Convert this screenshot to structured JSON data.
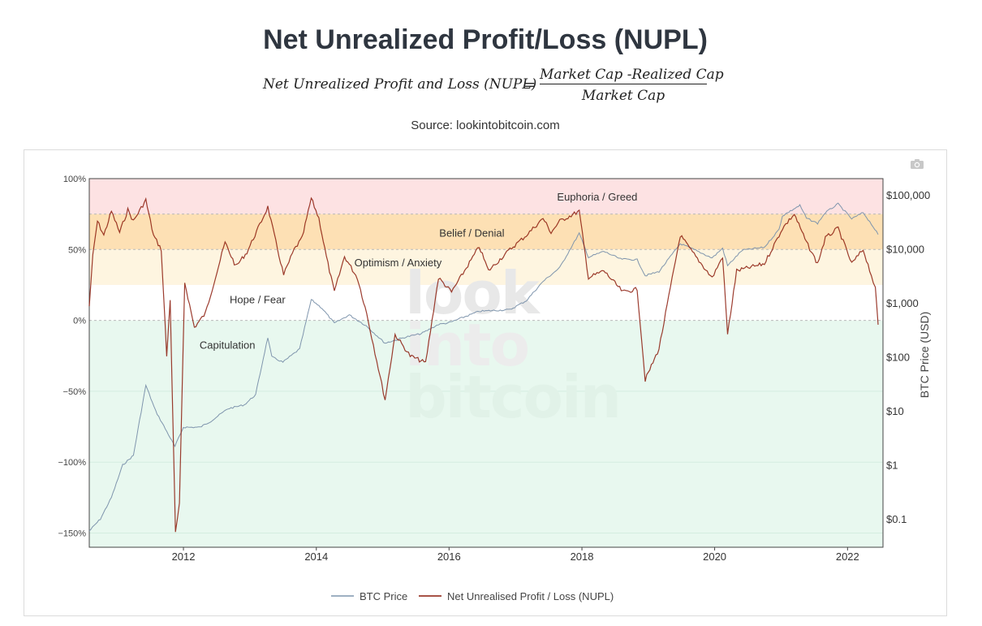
{
  "page": {
    "title": "Net Unrealized Profit/Loss (NUPL)",
    "formula": {
      "lhs": "Net Unrealized Profit and Loss (NUPL)",
      "equals": "=",
      "numerator": "Market Cap -Realized Cap",
      "denominator": "Market Cap"
    },
    "source": "Source: lookintobitcoin.com",
    "watermark": [
      "look",
      "into",
      "bitcoin"
    ]
  },
  "colors": {
    "nupl_line": "#8b1a0a",
    "btc_line": "#7f95ad",
    "zone_euphoria": "#fde2e3",
    "zone_belief": "#fde0b4",
    "zone_optimism": "#fef5e0",
    "zone_hope": "#ffffff",
    "zone_capitulation": "#e8f8ef"
  },
  "chart_data": {
    "type": "line",
    "x_type": "date",
    "x_ticks": [
      {
        "date": "2012-01-01",
        "label": "2012"
      },
      {
        "date": "2014-01-01",
        "label": "2014"
      },
      {
        "date": "2016-01-01",
        "label": "2016"
      },
      {
        "date": "2018-01-01",
        "label": "2018"
      },
      {
        "date": "2020-01-01",
        "label": "2020"
      },
      {
        "date": "2022-01-01",
        "label": "2022"
      }
    ],
    "xlim": [
      "2010-08-01",
      "2022-07-15"
    ],
    "y_left": {
      "ylim": [
        -160,
        100
      ],
      "ticks": [
        {
          "value": 100,
          "label": "100%"
        },
        {
          "value": 50,
          "label": "50%"
        },
        {
          "value": 0,
          "label": "0%"
        },
        {
          "value": -50,
          "label": "−50%"
        },
        {
          "value": -100,
          "label": "−100%"
        },
        {
          "value": -150,
          "label": "−150%"
        }
      ]
    },
    "y_right": {
      "label": "BTC Price (USD)",
      "scale": "log",
      "ylim": [
        0.03,
        200000
      ],
      "ticks": [
        {
          "value": 100000,
          "label": "$100,000"
        },
        {
          "value": 10000,
          "label": "$10,000"
        },
        {
          "value": 1000,
          "label": "$1,000"
        },
        {
          "value": 100,
          "label": "$100"
        },
        {
          "value": 10,
          "label": "$10"
        },
        {
          "value": 1,
          "label": "$1"
        },
        {
          "value": 0.1,
          "label": "$0.1"
        }
      ]
    },
    "zones": [
      {
        "label": "Euphoria / Greed",
        "from": 75,
        "to": 100,
        "color": "#fde2e3"
      },
      {
        "label": "Belief / Denial",
        "from": 50,
        "to": 75,
        "color": "#fde0b4"
      },
      {
        "label": "Optimism / Anxiety",
        "from": 25,
        "to": 50,
        "color": "#fef5e0"
      },
      {
        "label": "Hope / Fear",
        "from": 0,
        "to": 25,
        "color": "#ffffff"
      },
      {
        "label": "Capitulation",
        "from": -160,
        "to": 0,
        "color": "#e8f8ef"
      }
    ],
    "series": [
      {
        "name": "BTC Price",
        "axis": "right",
        "points": [
          [
            "2010-08-01",
            0.06
          ],
          [
            "2010-10-01",
            0.1
          ],
          [
            "2010-12-01",
            0.25
          ],
          [
            "2011-02-01",
            1.0
          ],
          [
            "2011-04-01",
            1.5
          ],
          [
            "2011-06-08",
            30
          ],
          [
            "2011-08-01",
            10
          ],
          [
            "2011-11-15",
            2.2
          ],
          [
            "2012-01-01",
            5
          ],
          [
            "2012-04-01",
            5
          ],
          [
            "2012-06-01",
            6.5
          ],
          [
            "2012-09-01",
            11
          ],
          [
            "2012-12-01",
            13
          ],
          [
            "2013-02-01",
            20
          ],
          [
            "2013-04-09",
            230
          ],
          [
            "2013-05-01",
            100
          ],
          [
            "2013-07-01",
            80
          ],
          [
            "2013-10-01",
            140
          ],
          [
            "2013-12-04",
            1150
          ],
          [
            "2014-02-01",
            800
          ],
          [
            "2014-04-10",
            420
          ],
          [
            "2014-07-01",
            600
          ],
          [
            "2014-10-01",
            380
          ],
          [
            "2015-01-14",
            180
          ],
          [
            "2015-05-01",
            230
          ],
          [
            "2015-08-01",
            270
          ],
          [
            "2015-11-04",
            400
          ],
          [
            "2016-01-01",
            430
          ],
          [
            "2016-06-15",
            700
          ],
          [
            "2016-12-01",
            750
          ],
          [
            "2017-03-01",
            1100
          ],
          [
            "2017-06-01",
            2500
          ],
          [
            "2017-09-01",
            4500
          ],
          [
            "2017-12-17",
            19500
          ],
          [
            "2018-02-06",
            7000
          ],
          [
            "2018-05-01",
            9000
          ],
          [
            "2018-08-01",
            6500
          ],
          [
            "2018-11-01",
            6300
          ],
          [
            "2018-12-15",
            3200
          ],
          [
            "2019-03-01",
            3800
          ],
          [
            "2019-06-26",
            12500
          ],
          [
            "2019-09-01",
            10000
          ],
          [
            "2019-12-18",
            6800
          ],
          [
            "2020-02-14",
            10300
          ],
          [
            "2020-03-12",
            4900
          ],
          [
            "2020-06-01",
            9500
          ],
          [
            "2020-10-01",
            10700
          ],
          [
            "2020-12-20",
            23000
          ],
          [
            "2021-01-08",
            41000
          ],
          [
            "2021-04-14",
            64000
          ],
          [
            "2021-05-20",
            37000
          ],
          [
            "2021-07-20",
            29700
          ],
          [
            "2021-09-01",
            47000
          ],
          [
            "2021-11-10",
            68000
          ],
          [
            "2022-01-24",
            36000
          ],
          [
            "2022-03-28",
            47000
          ],
          [
            "2022-05-12",
            29000
          ],
          [
            "2022-06-18",
            18500
          ]
        ]
      },
      {
        "name": "Net Unrealised Profit / Loss (NUPL)",
        "axis": "left",
        "points": [
          [
            "2010-08-01",
            10
          ],
          [
            "2010-08-20",
            45
          ],
          [
            "2010-09-15",
            70
          ],
          [
            "2010-10-20",
            60
          ],
          [
            "2010-12-01",
            77
          ],
          [
            "2011-01-15",
            62
          ],
          [
            "2011-03-01",
            78
          ],
          [
            "2011-04-01",
            70
          ],
          [
            "2011-06-08",
            85
          ],
          [
            "2011-07-20",
            60
          ],
          [
            "2011-09-01",
            50
          ],
          [
            "2011-10-01",
            -25
          ],
          [
            "2011-10-20",
            15
          ],
          [
            "2011-11-18",
            -150
          ],
          [
            "2011-12-10",
            -130
          ],
          [
            "2012-01-08",
            27
          ],
          [
            "2012-03-01",
            -5
          ],
          [
            "2012-05-01",
            5
          ],
          [
            "2012-08-17",
            55
          ],
          [
            "2012-10-15",
            38
          ],
          [
            "2012-12-15",
            48
          ],
          [
            "2013-02-15",
            65
          ],
          [
            "2013-04-09",
            80
          ],
          [
            "2013-05-15",
            60
          ],
          [
            "2013-07-05",
            32
          ],
          [
            "2013-09-01",
            50
          ],
          [
            "2013-10-15",
            58
          ],
          [
            "2013-12-04",
            86
          ],
          [
            "2014-01-15",
            72
          ],
          [
            "2014-02-25",
            45
          ],
          [
            "2014-04-10",
            20
          ],
          [
            "2014-06-05",
            45
          ],
          [
            "2014-08-15",
            30
          ],
          [
            "2014-10-05",
            5
          ],
          [
            "2015-01-14",
            -56
          ],
          [
            "2015-03-10",
            -10
          ],
          [
            "2015-06-01",
            -25
          ],
          [
            "2015-08-25",
            -30
          ],
          [
            "2015-11-04",
            30
          ],
          [
            "2016-01-15",
            20
          ],
          [
            "2016-06-15",
            52
          ],
          [
            "2016-08-05",
            35
          ],
          [
            "2016-12-01",
            50
          ],
          [
            "2017-03-01",
            60
          ],
          [
            "2017-06-01",
            72
          ],
          [
            "2017-07-15",
            62
          ],
          [
            "2017-09-01",
            70
          ],
          [
            "2017-12-17",
            77
          ],
          [
            "2018-02-06",
            30
          ],
          [
            "2018-05-01",
            35
          ],
          [
            "2018-08-14",
            20
          ],
          [
            "2018-11-01",
            22
          ],
          [
            "2018-12-15",
            -42
          ],
          [
            "2019-03-01",
            -20
          ],
          [
            "2019-06-26",
            60
          ],
          [
            "2019-09-01",
            48
          ],
          [
            "2019-12-18",
            30
          ],
          [
            "2020-02-14",
            45
          ],
          [
            "2020-03-12",
            -10
          ],
          [
            "2020-05-01",
            35
          ],
          [
            "2020-10-01",
            40
          ],
          [
            "2020-12-20",
            60
          ],
          [
            "2021-01-08",
            65
          ],
          [
            "2021-03-14",
            75
          ],
          [
            "2021-05-20",
            55
          ],
          [
            "2021-07-20",
            40
          ],
          [
            "2021-09-01",
            58
          ],
          [
            "2021-11-10",
            65
          ],
          [
            "2022-01-24",
            40
          ],
          [
            "2022-03-28",
            50
          ],
          [
            "2022-05-12",
            32
          ],
          [
            "2022-06-03",
            22
          ],
          [
            "2022-06-18",
            -3
          ]
        ]
      }
    ],
    "legend_position": "bottom-center",
    "grid": true
  }
}
